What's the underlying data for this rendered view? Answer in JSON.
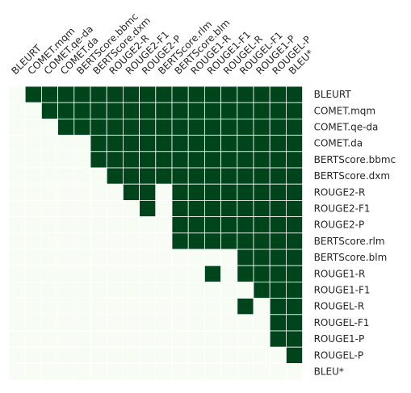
{
  "chart_data": {
    "type": "heatmap",
    "title": "",
    "xlabel": "",
    "ylabel": "",
    "x_labels": [
      "BLEURT",
      "COMET.mqm",
      "COMET.qe-da",
      "COMET.da",
      "BERTScore.bbmc",
      "BERTScore.dxm",
      "ROUGE2-R",
      "ROUGE2-F1",
      "ROUGE2-P",
      "BERTScore.rlm",
      "BERTScore.blm",
      "ROUGE1-R",
      "ROUGE1-F1",
      "ROUGEL-R",
      "ROUGEL-F1",
      "ROUGE1-P",
      "ROUGEL-P",
      "BLEU*"
    ],
    "y_labels": [
      "BLEURT",
      "COMET.mqm",
      "COMET.qe-da",
      "COMET.da",
      "BERTScore.bbmc",
      "BERTScore.dxm",
      "ROUGE2-R",
      "ROUGE2-F1",
      "ROUGE2-P",
      "BERTScore.rlm",
      "BERTScore.blm",
      "ROUGE1-R",
      "ROUGE1-F1",
      "ROUGEL-R",
      "ROUGEL-F1",
      "ROUGE1-P",
      "ROUGEL-P",
      "BLEU*"
    ],
    "x_tick_position": "top",
    "y_tick_position": "right",
    "grid": true,
    "colors": {
      "low": "#f7fcf5",
      "high": "#00441b",
      "grid": "#ffffff"
    },
    "values": [
      [
        0,
        1,
        1,
        1,
        1,
        1,
        1,
        1,
        1,
        1,
        1,
        1,
        1,
        1,
        1,
        1,
        1,
        1
      ],
      [
        0,
        0,
        1,
        1,
        1,
        1,
        1,
        1,
        1,
        1,
        1,
        1,
        1,
        1,
        1,
        1,
        1,
        1
      ],
      [
        0,
        0,
        0,
        1,
        1,
        1,
        1,
        1,
        1,
        1,
        1,
        1,
        1,
        1,
        1,
        1,
        1,
        1
      ],
      [
        0,
        0,
        0,
        0,
        0,
        1,
        1,
        1,
        1,
        1,
        1,
        1,
        1,
        1,
        1,
        1,
        1,
        1
      ],
      [
        0,
        0,
        0,
        0,
        0,
        1,
        1,
        1,
        1,
        1,
        1,
        1,
        1,
        1,
        1,
        1,
        1,
        1
      ],
      [
        0,
        0,
        0,
        0,
        0,
        0,
        1,
        1,
        1,
        1,
        1,
        1,
        1,
        1,
        1,
        1,
        1,
        1
      ],
      [
        0,
        0,
        0,
        0,
        0,
        0,
        0,
        1,
        1,
        0,
        1,
        1,
        1,
        1,
        1,
        1,
        1,
        1
      ],
      [
        0,
        0,
        0,
        0,
        0,
        0,
        0,
        0,
        1,
        0,
        1,
        1,
        1,
        1,
        1,
        1,
        1,
        1
      ],
      [
        0,
        0,
        0,
        0,
        0,
        0,
        0,
        0,
        0,
        0,
        1,
        1,
        1,
        1,
        1,
        1,
        1,
        1
      ],
      [
        0,
        0,
        0,
        0,
        0,
        0,
        0,
        0,
        0,
        0,
        1,
        1,
        1,
        1,
        1,
        1,
        1,
        1
      ],
      [
        0,
        0,
        0,
        0,
        0,
        0,
        0,
        0,
        0,
        0,
        0,
        0,
        0,
        0,
        1,
        1,
        1,
        1
      ],
      [
        0,
        0,
        0,
        0,
        0,
        0,
        0,
        0,
        0,
        0,
        0,
        0,
        1,
        0,
        1,
        1,
        1,
        1
      ],
      [
        0,
        0,
        0,
        0,
        0,
        0,
        0,
        0,
        0,
        0,
        0,
        0,
        0,
        0,
        0,
        1,
        1,
        1
      ],
      [
        0,
        0,
        0,
        0,
        0,
        0,
        0,
        0,
        0,
        0,
        0,
        0,
        0,
        0,
        1,
        0,
        1,
        1
      ],
      [
        0,
        0,
        0,
        0,
        0,
        0,
        0,
        0,
        0,
        0,
        0,
        0,
        0,
        0,
        0,
        0,
        1,
        1
      ],
      [
        0,
        0,
        0,
        0,
        0,
        0,
        0,
        0,
        0,
        0,
        0,
        0,
        0,
        0,
        0,
        0,
        1,
        1
      ],
      [
        0,
        0,
        0,
        0,
        0,
        0,
        0,
        0,
        0,
        0,
        0,
        0,
        0,
        0,
        0,
        0,
        0,
        1
      ],
      [
        0,
        0,
        0,
        0,
        0,
        0,
        0,
        0,
        0,
        0,
        0,
        0,
        0,
        0,
        0,
        0,
        0,
        0
      ]
    ]
  }
}
